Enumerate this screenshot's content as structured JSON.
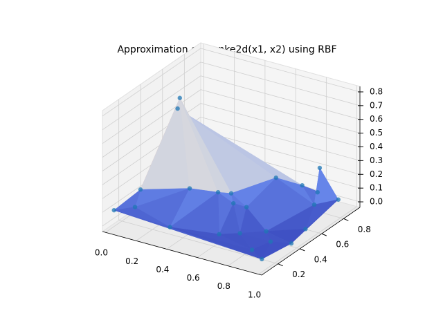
{
  "chart_data": {
    "type": "surface3d",
    "title": "Approximation of Franke2d(x1, x2) using RBF",
    "x": [
      0.02,
      0.2,
      0.15,
      0.05,
      0.05,
      0.3,
      0.45,
      0.5,
      0.55,
      0.6,
      0.65,
      0.8,
      0.9,
      0.85,
      0.95,
      1.0,
      0.9,
      0.95,
      0.85,
      0.9,
      0.7,
      0.95,
      0.6,
      0.35,
      0.75
    ],
    "y": [
      0.1,
      0.45,
      0.5,
      0.3,
      0.25,
      0.4,
      0.45,
      0.5,
      0.45,
      0.5,
      0.7,
      0.4,
      0.3,
      0.2,
      0.15,
      0.35,
      0.75,
      0.85,
      0.8,
      0.7,
      0.3,
      0.55,
      0.25,
      0.15,
      0.8
    ],
    "z": [
      0.1,
      0.78,
      0.66,
      0.15,
      0.05,
      0.18,
      0.17,
      0.15,
      0.12,
      0.08,
      0.2,
      0.02,
      0.03,
      0.01,
      0.0,
      0.02,
      0.32,
      0.05,
      0.1,
      0.08,
      0.03,
      0.0,
      0.02,
      0.05,
      0.12
    ],
    "color": "#1f77b4",
    "colormap": "coolwarm",
    "xlim": [
      -0.02,
      1.02
    ],
    "ylim": [
      0.05,
      0.95
    ],
    "zlim": [
      -0.04,
      0.84
    ],
    "xticks": [
      {
        "value": 0.0,
        "label": "0.0"
      },
      0.2,
      0.4,
      0.6,
      0.8,
      {
        "value": 1.0,
        "label": "1.0"
      }
    ],
    "yticks": [
      0.2,
      0.4,
      0.6,
      0.8
    ],
    "zticks": [
      {
        "value": 0.0,
        "label": "0.0"
      },
      0.1,
      0.2,
      0.3,
      0.4,
      0.5,
      0.6,
      0.7,
      0.8
    ],
    "grid": true
  }
}
